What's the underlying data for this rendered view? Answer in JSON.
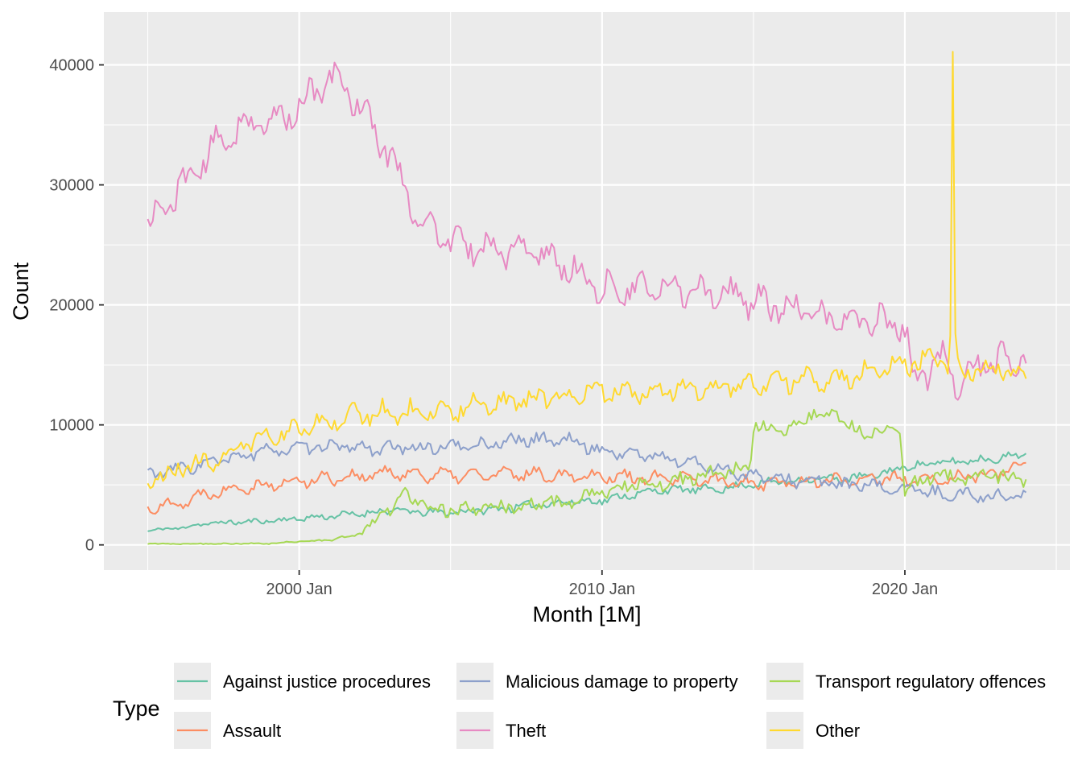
{
  "chart_data": {
    "type": "line",
    "title": "",
    "xlabel": "Month [1M]",
    "ylabel": "Count",
    "x_start": "1995 Jan",
    "x_end": "2024 Jan",
    "x_ticks": [
      {
        "year": 2000,
        "label": "2000 Jan"
      },
      {
        "year": 2010,
        "label": "2010 Jan"
      },
      {
        "year": 2020,
        "label": "2020 Jan"
      }
    ],
    "y_ticks": [
      0,
      10000,
      20000,
      30000,
      40000
    ],
    "ylim": [
      -2100,
      44400
    ],
    "xlim_years": [
      1993.55,
      2025.45
    ],
    "grid": true,
    "legend": {
      "title": "Type",
      "position": "bottom",
      "columns": 3
    },
    "series": [
      {
        "name": "Against justice procedures",
        "color": "#66C2A5",
        "keypoints": [
          [
            1995,
            1200
          ],
          [
            1996,
            1400
          ],
          [
            1997,
            1800
          ],
          [
            1998,
            1900
          ],
          [
            1999,
            2000
          ],
          [
            2000,
            2200
          ],
          [
            2001,
            2400
          ],
          [
            2002,
            2600
          ],
          [
            2003,
            2900
          ],
          [
            2004,
            2700
          ],
          [
            2005,
            2700
          ],
          [
            2006,
            2900
          ],
          [
            2007,
            3100
          ],
          [
            2008,
            3400
          ],
          [
            2009,
            3600
          ],
          [
            2010,
            3700
          ],
          [
            2011,
            4200
          ],
          [
            2012,
            4600
          ],
          [
            2013,
            4600
          ],
          [
            2014,
            4700
          ],
          [
            2015,
            5100
          ],
          [
            2016,
            5300
          ],
          [
            2017,
            5500
          ],
          [
            2018,
            5500
          ],
          [
            2019,
            5800
          ],
          [
            2020,
            6500
          ],
          [
            2021,
            6800
          ],
          [
            2022,
            7000
          ],
          [
            2023,
            7200
          ],
          [
            2024,
            7600
          ]
        ],
        "noise": 280,
        "seasonal": 150,
        "seed": 11
      },
      {
        "name": "Assault",
        "color": "#FC8D62",
        "keypoints": [
          [
            1995,
            3100
          ],
          [
            1996,
            3500
          ],
          [
            1997,
            4300
          ],
          [
            1998,
            4900
          ],
          [
            1999,
            5000
          ],
          [
            2000,
            5300
          ],
          [
            2001,
            5600
          ],
          [
            2002,
            5700
          ],
          [
            2003,
            6000
          ],
          [
            2004,
            5900
          ],
          [
            2005,
            5800
          ],
          [
            2006,
            5800
          ],
          [
            2007,
            5900
          ],
          [
            2008,
            5900
          ],
          [
            2009,
            5800
          ],
          [
            2010,
            5800
          ],
          [
            2011,
            5600
          ],
          [
            2012,
            5500
          ],
          [
            2013,
            5400
          ],
          [
            2014,
            5300
          ],
          [
            2015,
            5200
          ],
          [
            2016,
            5200
          ],
          [
            2017,
            5300
          ],
          [
            2018,
            5400
          ],
          [
            2019,
            5600
          ],
          [
            2020,
            5400
          ],
          [
            2021,
            5300
          ],
          [
            2022,
            5700
          ],
          [
            2023,
            5900
          ],
          [
            2024,
            6700
          ]
        ],
        "noise": 380,
        "seasonal": 380,
        "seed": 22
      },
      {
        "name": "Malicious damage to property",
        "color": "#8DA0CB",
        "keypoints": [
          [
            1995,
            5900
          ],
          [
            1996,
            6300
          ],
          [
            1997,
            6800
          ],
          [
            1998,
            7300
          ],
          [
            1999,
            7900
          ],
          [
            2000,
            8000
          ],
          [
            2001,
            8200
          ],
          [
            2002,
            8100
          ],
          [
            2003,
            8000
          ],
          [
            2004,
            8100
          ],
          [
            2005,
            8200
          ],
          [
            2006,
            8300
          ],
          [
            2007,
            8700
          ],
          [
            2008,
            8800
          ],
          [
            2009,
            8700
          ],
          [
            2010,
            7800
          ],
          [
            2011,
            7600
          ],
          [
            2012,
            7300
          ],
          [
            2013,
            6800
          ],
          [
            2014,
            6300
          ],
          [
            2015,
            5700
          ],
          [
            2016,
            5400
          ],
          [
            2017,
            5300
          ],
          [
            2018,
            5000
          ],
          [
            2019,
            4800
          ],
          [
            2020,
            4700
          ],
          [
            2021,
            4300
          ],
          [
            2022,
            4200
          ],
          [
            2023,
            4000
          ],
          [
            2024,
            4200
          ]
        ],
        "noise": 420,
        "seasonal": 300,
        "seed": 33
      },
      {
        "name": "Theft",
        "color": "#E78AC3",
        "keypoints": [
          [
            1995,
            26500
          ],
          [
            1996,
            29500
          ],
          [
            1997,
            32500
          ],
          [
            1998,
            35000
          ],
          [
            1999,
            35000
          ],
          [
            2000,
            36500
          ],
          [
            2001,
            38800
          ],
          [
            2001.5,
            38500
          ],
          [
            2002,
            36500
          ],
          [
            2003,
            32500
          ],
          [
            2004,
            27000
          ],
          [
            2005,
            25200
          ],
          [
            2006,
            24800
          ],
          [
            2007,
            24500
          ],
          [
            2008,
            24300
          ],
          [
            2009,
            23000
          ],
          [
            2010,
            21300
          ],
          [
            2011,
            21200
          ],
          [
            2012,
            21300
          ],
          [
            2013,
            21400
          ],
          [
            2014,
            21000
          ],
          [
            2015,
            20300
          ],
          [
            2016,
            19700
          ],
          [
            2017,
            19100
          ],
          [
            2018,
            18600
          ],
          [
            2019,
            18800
          ],
          [
            2020,
            18200
          ],
          [
            2020.3,
            13500
          ],
          [
            2021,
            15300
          ],
          [
            2021.5,
            15200
          ],
          [
            2021.7,
            11600
          ],
          [
            2022,
            14400
          ],
          [
            2023,
            15200
          ],
          [
            2024,
            15700
          ]
        ],
        "noise": 950,
        "seasonal": 900,
        "seed": 44
      },
      {
        "name": "Transport regulatory offences",
        "color": "#A6D854",
        "keypoints": [
          [
            1995,
            100
          ],
          [
            1999,
            100
          ],
          [
            2000,
            300
          ],
          [
            2001,
            400
          ],
          [
            2002,
            900
          ],
          [
            2002.5,
            2000
          ],
          [
            2003,
            3100
          ],
          [
            2003.5,
            4200
          ],
          [
            2004,
            3600
          ],
          [
            2005,
            2800
          ],
          [
            2006,
            3000
          ],
          [
            2007,
            3200
          ],
          [
            2008,
            3400
          ],
          [
            2009,
            3600
          ],
          [
            2010,
            4300
          ],
          [
            2011,
            5200
          ],
          [
            2012,
            5200
          ],
          [
            2013,
            5500
          ],
          [
            2014,
            6200
          ],
          [
            2014.9,
            6300
          ],
          [
            2015,
            10000
          ],
          [
            2016,
            9300
          ],
          [
            2017,
            11000
          ],
          [
            2018,
            10500
          ],
          [
            2018.8,
            8800
          ],
          [
            2019,
            9500
          ],
          [
            2019.8,
            9800
          ],
          [
            2020,
            4800
          ],
          [
            2021,
            5800
          ],
          [
            2022,
            5500
          ],
          [
            2023,
            5900
          ],
          [
            2024,
            5300
          ]
        ],
        "noise": 520,
        "seasonal": 250,
        "seed": 55
      },
      {
        "name": "Other",
        "color": "#FFD92F",
        "keypoints": [
          [
            1995,
            5600
          ],
          [
            1996,
            6200
          ],
          [
            1997,
            7000
          ],
          [
            1998,
            8100
          ],
          [
            1999,
            9100
          ],
          [
            2000,
            9500
          ],
          [
            2001,
            10500
          ],
          [
            2002,
            10900
          ],
          [
            2003,
            11200
          ],
          [
            2004,
            11100
          ],
          [
            2005,
            11300
          ],
          [
            2006,
            11600
          ],
          [
            2007,
            11900
          ],
          [
            2008,
            12300
          ],
          [
            2009,
            12500
          ],
          [
            2010,
            12800
          ],
          [
            2011,
            12800
          ],
          [
            2012,
            13000
          ],
          [
            2013,
            13000
          ],
          [
            2014,
            13200
          ],
          [
            2015,
            13400
          ],
          [
            2016,
            13600
          ],
          [
            2017,
            13700
          ],
          [
            2018,
            14000
          ],
          [
            2019,
            14600
          ],
          [
            2020,
            15000
          ],
          [
            2021,
            15500
          ],
          [
            2022,
            14500
          ],
          [
            2023,
            14800
          ],
          [
            2024,
            14200
          ]
        ],
        "noise": 650,
        "seasonal": 550,
        "seed": 66
      }
    ],
    "annotations": [
      {
        "series": "Other",
        "x": 2021.6,
        "y": 41100,
        "label": "spike"
      }
    ]
  }
}
